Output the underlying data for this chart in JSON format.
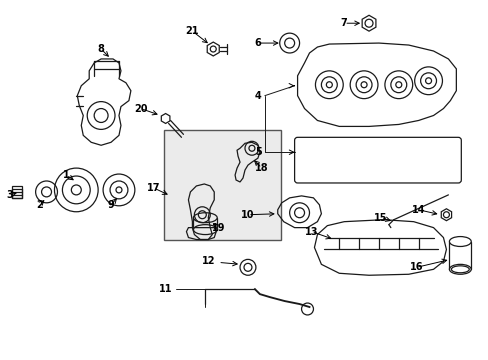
{
  "bg_color": "#ffffff",
  "line_color": "#1a1a1a",
  "box_color": "#ebebeb",
  "fig_width": 4.89,
  "fig_height": 3.6,
  "dpi": 100,
  "labels": {
    "1": [
      74,
      207,
      85,
      197
    ],
    "2": [
      40,
      192,
      50,
      185
    ],
    "3": [
      8,
      195,
      20,
      193
    ],
    "4": [
      265,
      107,
      295,
      118
    ],
    "5": [
      270,
      152,
      300,
      155
    ],
    "6": [
      270,
      42,
      290,
      42
    ],
    "7": [
      340,
      22,
      360,
      22
    ],
    "8": [
      105,
      57,
      118,
      68
    ],
    "9": [
      113,
      197,
      125,
      192
    ],
    "10": [
      258,
      211,
      278,
      214
    ],
    "11": [
      175,
      285,
      202,
      295
    ],
    "12": [
      220,
      265,
      243,
      265
    ],
    "13": [
      320,
      232,
      345,
      236
    ],
    "14": [
      420,
      208,
      440,
      215
    ],
    "15": [
      385,
      218,
      405,
      223
    ],
    "16": [
      418,
      272,
      440,
      280
    ],
    "17": [
      152,
      178,
      168,
      186
    ],
    "18": [
      258,
      158,
      262,
      150
    ],
    "19": [
      222,
      218,
      222,
      210
    ],
    "20": [
      148,
      105,
      160,
      115
    ],
    "21": [
      192,
      32,
      205,
      42
    ]
  }
}
